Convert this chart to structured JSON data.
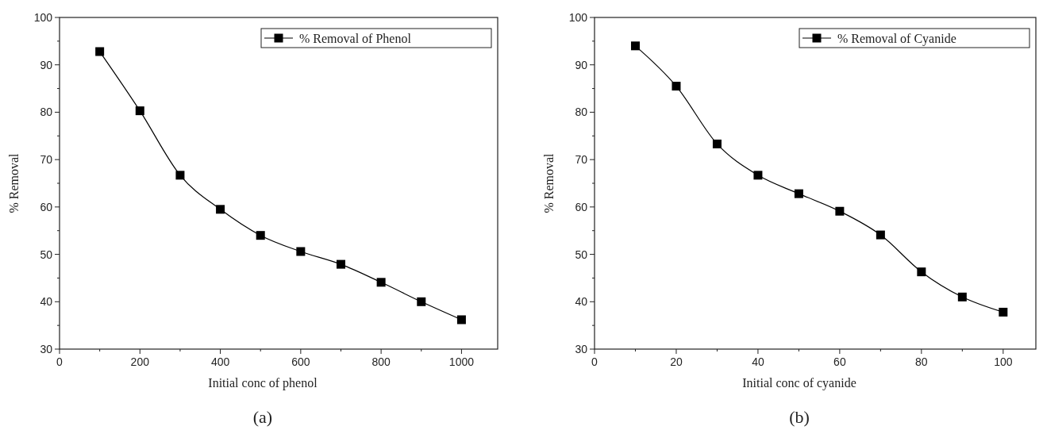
{
  "chart_data": [
    {
      "type": "line",
      "xlabel": "Initial conc of phenol",
      "ylabel": "% Removal",
      "annotations": [
        "(a)"
      ],
      "x": [
        100,
        200,
        300,
        400,
        500,
        600,
        700,
        800,
        900,
        1000
      ],
      "series": [
        {
          "name": "% Removal of Phenol",
          "color": "#000000",
          "values": [
            92.8,
            80.3,
            66.7,
            59.5,
            54,
            50.6,
            47.9,
            44.1,
            40,
            36.2
          ]
        }
      ],
      "xlim": [
        0,
        1090
      ],
      "xticks": [
        0,
        {
          "value": 100,
          "label": null
        },
        200,
        {
          "value": 300,
          "label": null
        },
        400,
        {
          "value": 500,
          "label": null
        },
        600,
        {
          "value": 700,
          "label": null
        },
        800,
        {
          "value": 900,
          "label": null
        },
        1000
      ],
      "ylim": [
        30,
        100
      ],
      "yticks": [
        30,
        {
          "value": 35,
          "label": null
        },
        40,
        {
          "value": 45,
          "label": null
        },
        50,
        {
          "value": 55,
          "label": null
        },
        60,
        {
          "value": 65,
          "label": null
        },
        70,
        {
          "value": 75,
          "label": null
        },
        80,
        {
          "value": 85,
          "label": null
        },
        90,
        {
          "value": 95,
          "label": null
        },
        100
      ],
      "grid": false,
      "legend": "top right",
      "marker": "square",
      "line_style": "solid"
    },
    {
      "type": "line",
      "xlabel": "Initial conc of cyanide",
      "ylabel": "% Removal",
      "annotations": [
        "(b)"
      ],
      "x": [
        10,
        20,
        30,
        40,
        50,
        60,
        70,
        80,
        90,
        100
      ],
      "series": [
        {
          "name": "% Removal of Cyanide",
          "color": "#000000",
          "values": [
            94,
            85.5,
            73.3,
            66.7,
            62.8,
            59.1,
            54.1,
            46.3,
            41,
            37.8
          ]
        }
      ],
      "xlim": [
        0,
        108
      ],
      "xticks": [
        0,
        {
          "value": 10,
          "label": null
        },
        20,
        {
          "value": 30,
          "label": null
        },
        40,
        {
          "value": 50,
          "label": null
        },
        60,
        {
          "value": 70,
          "label": null
        },
        80,
        {
          "value": 90,
          "label": null
        },
        100
      ],
      "ylim": [
        30,
        100
      ],
      "yticks": [
        30,
        {
          "value": 35,
          "label": null
        },
        40,
        {
          "value": 45,
          "label": null
        },
        50,
        {
          "value": 55,
          "label": null
        },
        60,
        {
          "value": 65,
          "label": null
        },
        70,
        {
          "value": 75,
          "label": null
        },
        80,
        {
          "value": 85,
          "label": null
        },
        90,
        {
          "value": 95,
          "label": null
        },
        100
      ],
      "grid": false,
      "legend": "top right",
      "marker": "square",
      "line_style": "solid"
    }
  ]
}
